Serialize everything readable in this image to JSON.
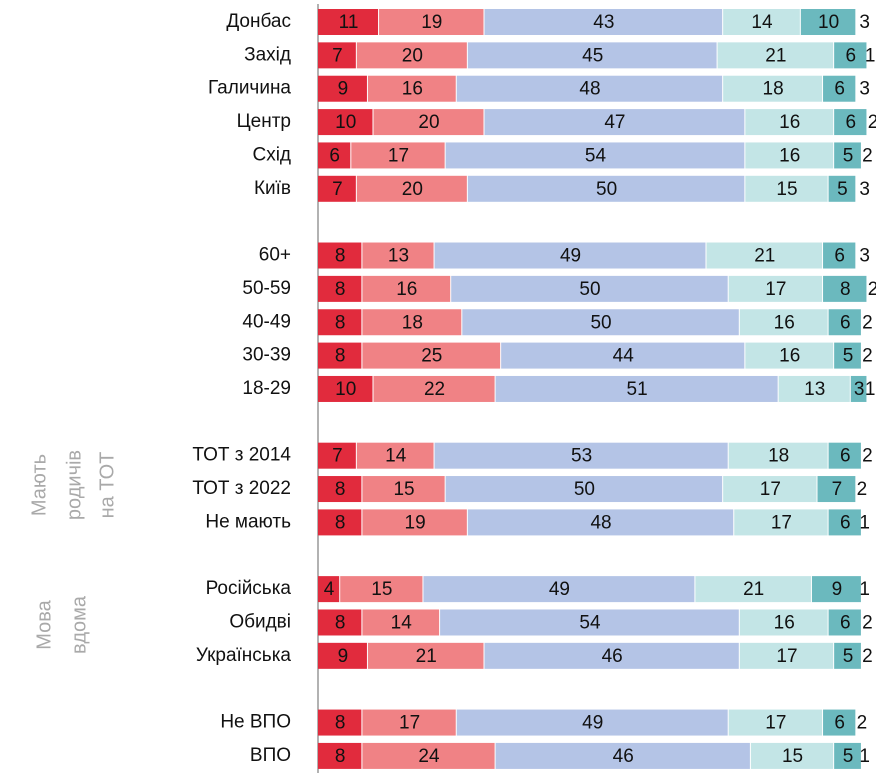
{
  "chart_data": {
    "type": "stacked-bar-horizontal",
    "categories": [
      "Донбас",
      "Захід",
      "Галичина",
      "Центр",
      "Схід",
      "Київ",
      null,
      "60+",
      "50-59",
      "40-49",
      "30-39",
      "18-29",
      null,
      "ТОТ з 2014",
      "ТОТ з 2022",
      "Не мають",
      null,
      "Російська",
      "Обидві",
      "Українська",
      null,
      "Не ВПО",
      "ВПО"
    ],
    "xlim": [
      0,
      100
    ],
    "series": [
      {
        "color": "#e12b3d",
        "values": [
          11,
          7,
          9,
          10,
          6,
          7,
          null,
          8,
          8,
          8,
          8,
          10,
          null,
          7,
          8,
          8,
          null,
          4,
          8,
          9,
          null,
          8,
          8
        ]
      },
      {
        "color": "#f08285",
        "values": [
          19,
          20,
          16,
          20,
          17,
          20,
          null,
          13,
          16,
          18,
          25,
          22,
          null,
          14,
          15,
          19,
          null,
          15,
          14,
          21,
          null,
          17,
          24
        ]
      },
      {
        "color": "#b4c4e6",
        "values": [
          43,
          45,
          48,
          47,
          54,
          50,
          null,
          49,
          50,
          50,
          44,
          51,
          null,
          53,
          50,
          48,
          null,
          49,
          54,
          46,
          null,
          49,
          46
        ]
      },
      {
        "color": "#c3e5e6",
        "values": [
          14,
          21,
          18,
          16,
          16,
          15,
          null,
          21,
          17,
          16,
          16,
          13,
          null,
          18,
          17,
          17,
          null,
          21,
          16,
          17,
          null,
          17,
          15
        ]
      },
      {
        "color": "#6bb9be",
        "values": [
          10,
          6,
          6,
          6,
          5,
          5,
          null,
          6,
          8,
          6,
          5,
          3,
          null,
          6,
          7,
          6,
          null,
          9,
          6,
          5,
          null,
          6,
          5
        ]
      },
      {
        "color": "#ffffff",
        "values": [
          3,
          1,
          3,
          2,
          2,
          3,
          null,
          3,
          2,
          2,
          2,
          1,
          null,
          2,
          2,
          1,
          null,
          1,
          2,
          2,
          null,
          2,
          1
        ]
      }
    ],
    "annotations": [
      {
        "lines": [
          "Мають",
          "родичів",
          "на ТОТ"
        ]
      },
      {
        "lines": [
          "Мова",
          "вдома"
        ]
      }
    ]
  }
}
